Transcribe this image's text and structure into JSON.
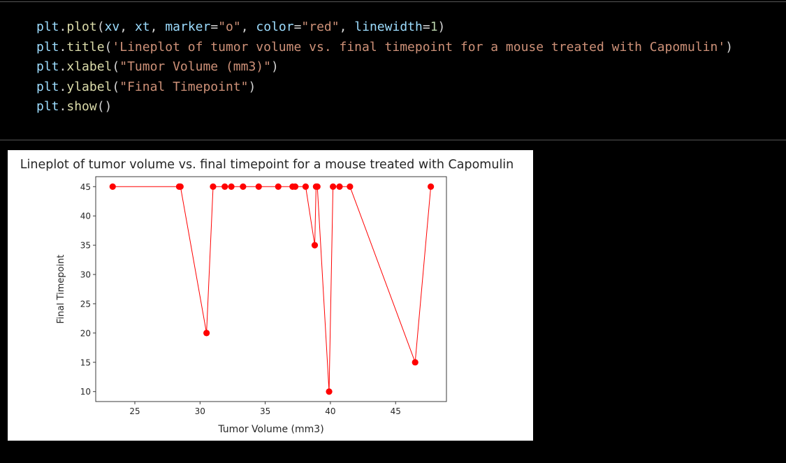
{
  "code": {
    "lines": [
      [
        {
          "t": "plt",
          "c": "#9cdcfe"
        },
        {
          "t": ".",
          "c": "#d4d4d4"
        },
        {
          "t": "plot",
          "c": "#dcdcaa"
        },
        {
          "t": "(",
          "c": "#d4d4d4"
        },
        {
          "t": "xv",
          "c": "#9cdcfe"
        },
        {
          "t": ", ",
          "c": "#d4d4d4"
        },
        {
          "t": "xt",
          "c": "#9cdcfe"
        },
        {
          "t": ", ",
          "c": "#d4d4d4"
        },
        {
          "t": "marker",
          "c": "#9cdcfe"
        },
        {
          "t": "=",
          "c": "#d4d4d4"
        },
        {
          "t": "\"o\"",
          "c": "#ce9178"
        },
        {
          "t": ", ",
          "c": "#d4d4d4"
        },
        {
          "t": "color",
          "c": "#9cdcfe"
        },
        {
          "t": "=",
          "c": "#d4d4d4"
        },
        {
          "t": "\"red\"",
          "c": "#ce9178"
        },
        {
          "t": ", ",
          "c": "#d4d4d4"
        },
        {
          "t": "linewidth",
          "c": "#9cdcfe"
        },
        {
          "t": "=",
          "c": "#d4d4d4"
        },
        {
          "t": "1",
          "c": "#b5cea8"
        },
        {
          "t": ")",
          "c": "#d4d4d4"
        }
      ],
      [
        {
          "t": "plt",
          "c": "#9cdcfe"
        },
        {
          "t": ".",
          "c": "#d4d4d4"
        },
        {
          "t": "title",
          "c": "#dcdcaa"
        },
        {
          "t": "(",
          "c": "#d4d4d4"
        },
        {
          "t": "'Lineplot of tumor volume vs. final timepoint for a mouse treated with Capomulin'",
          "c": "#ce9178"
        },
        {
          "t": ")",
          "c": "#d4d4d4"
        }
      ],
      [
        {
          "t": "plt",
          "c": "#9cdcfe"
        },
        {
          "t": ".",
          "c": "#d4d4d4"
        },
        {
          "t": "xlabel",
          "c": "#dcdcaa"
        },
        {
          "t": "(",
          "c": "#d4d4d4"
        },
        {
          "t": "\"Tumor Volume (mm3)\"",
          "c": "#ce9178"
        },
        {
          "t": ")",
          "c": "#d4d4d4"
        }
      ],
      [
        {
          "t": "plt",
          "c": "#9cdcfe"
        },
        {
          "t": ".",
          "c": "#d4d4d4"
        },
        {
          "t": "ylabel",
          "c": "#dcdcaa"
        },
        {
          "t": "(",
          "c": "#d4d4d4"
        },
        {
          "t": "\"Final Timepoint\"",
          "c": "#ce9178"
        },
        {
          "t": ")",
          "c": "#d4d4d4"
        }
      ],
      [
        {
          "t": "plt",
          "c": "#9cdcfe"
        },
        {
          "t": ".",
          "c": "#d4d4d4"
        },
        {
          "t": "show",
          "c": "#dcdcaa"
        },
        {
          "t": "()",
          "c": "#d4d4d4"
        }
      ]
    ]
  },
  "chart_data": {
    "type": "line",
    "title": "Lineplot of tumor volume vs. final timepoint for a mouse treated with Capomulin",
    "xlabel": "Tumor Volume (mm3)",
    "ylabel": "Final Timepoint",
    "x": [
      23.3,
      28.4,
      28.5,
      30.5,
      31.0,
      31.9,
      32.4,
      33.3,
      34.5,
      36.0,
      37.1,
      37.3,
      38.1,
      38.8,
      38.9,
      39.0,
      39.9,
      40.2,
      40.7,
      41.5,
      46.5,
      47.7
    ],
    "y": [
      45,
      45,
      45,
      20,
      45,
      45,
      45,
      45,
      45,
      45,
      45,
      45,
      45,
      35,
      45,
      45,
      10,
      45,
      45,
      45,
      15,
      45
    ],
    "xlim": [
      22,
      48.9
    ],
    "ylim": [
      8.3,
      46.7
    ],
    "xticks": [
      25,
      30,
      35,
      40,
      45
    ],
    "yticks": [
      10,
      15,
      20,
      25,
      30,
      35,
      40,
      45
    ],
    "color": "#ff0000",
    "marker": "o",
    "grid": false
  }
}
